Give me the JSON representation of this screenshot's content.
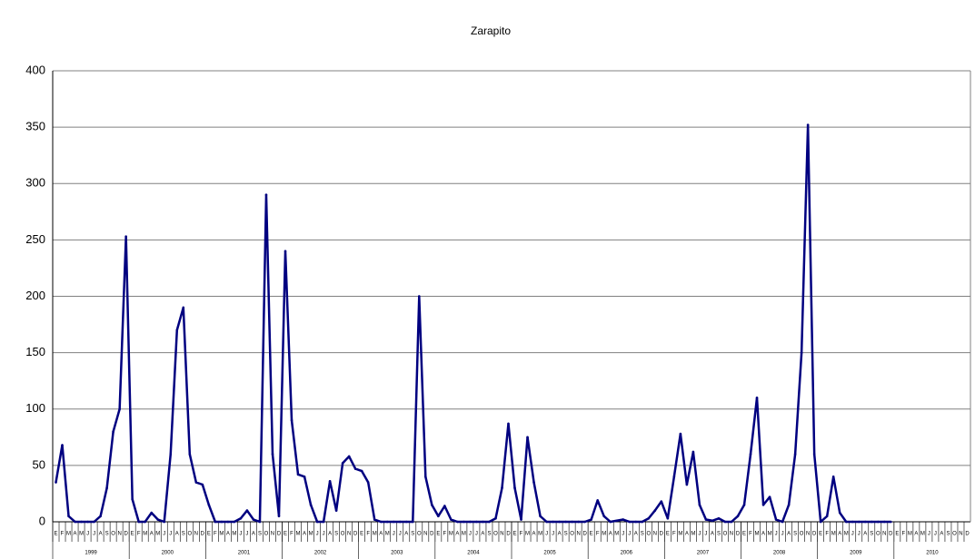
{
  "chart_data": {
    "type": "line",
    "title": "Zarapito",
    "categories": [
      "E",
      "F",
      "M",
      "A",
      "M",
      "J",
      "J",
      "A",
      "S",
      "O",
      "N",
      "D",
      "E",
      "F",
      "M",
      "A",
      "M",
      "J",
      "J",
      "A",
      "S",
      "O",
      "N",
      "D",
      "E",
      "F",
      "M",
      "A",
      "M",
      "J",
      "J",
      "A",
      "S",
      "O",
      "N",
      "D",
      "E",
      "F",
      "M",
      "A",
      "M",
      "J",
      "J",
      "A",
      "S",
      "O",
      "N",
      "D",
      "E",
      "F",
      "M",
      "A",
      "M",
      "J",
      "J",
      "A",
      "S",
      "O",
      "N",
      "D",
      "E",
      "F",
      "M",
      "A",
      "M",
      "J",
      "J",
      "A",
      "S",
      "O",
      "N",
      "D",
      "E",
      "F",
      "M",
      "A",
      "M",
      "J",
      "J",
      "A",
      "S",
      "O",
      "N",
      "D",
      "E",
      "F",
      "M",
      "A",
      "M",
      "J",
      "J",
      "A",
      "S",
      "O",
      "N",
      "D",
      "E",
      "F",
      "M",
      "A",
      "M",
      "J",
      "J",
      "A",
      "S",
      "O",
      "N",
      "D",
      "E",
      "F",
      "M",
      "A",
      "M",
      "J",
      "J",
      "A",
      "S",
      "O",
      "N",
      "D",
      "E",
      "F",
      "M",
      "A",
      "M",
      "J",
      "J",
      "A",
      "S",
      "O",
      "N",
      "D",
      "E",
      "F",
      "M",
      "A",
      "M",
      "J",
      "J",
      "A",
      "S",
      "O",
      "N",
      "D"
    ],
    "years": [
      "1999",
      "2000",
      "2001",
      "2002",
      "2003",
      "2004",
      "2005",
      "2006",
      "2007",
      "2008",
      "2009",
      "2010"
    ],
    "series": [
      {
        "color": "#000080",
        "values": [
          35,
          68,
          5,
          0,
          0,
          0,
          0,
          5,
          30,
          80,
          100,
          253,
          20,
          0,
          0,
          8,
          2,
          0,
          60,
          170,
          190,
          60,
          35,
          33,
          15,
          0,
          0,
          0,
          0,
          3,
          10,
          2,
          0,
          290,
          60,
          5,
          240,
          90,
          42,
          40,
          15,
          0,
          0,
          36,
          10,
          52,
          58,
          47,
          45,
          35,
          2,
          0,
          0,
          0,
          0,
          0,
          0,
          200,
          40,
          15,
          5,
          14,
          2,
          0,
          0,
          0,
          0,
          0,
          0,
          3,
          30,
          87,
          30,
          2,
          75,
          35,
          5,
          0,
          0,
          0,
          0,
          0,
          0,
          0,
          2,
          19,
          5,
          0,
          1,
          2,
          0,
          0,
          0,
          3,
          10,
          18,
          3,
          40,
          78,
          33,
          62,
          15,
          2,
          1,
          3,
          0,
          0,
          5,
          15,
          60,
          110,
          15,
          22,
          2,
          0,
          15,
          60,
          150,
          352,
          60,
          0,
          5,
          40,
          8,
          0,
          0,
          0,
          0,
          0,
          0,
          0,
          0,
          null,
          null,
          null,
          null,
          null,
          null,
          null,
          null,
          null,
          null,
          null,
          null
        ]
      }
    ],
    "ylim": [
      0,
      400
    ],
    "yticks": [
      0,
      50,
      100,
      150,
      200,
      250,
      300,
      350,
      400
    ],
    "grid": true
  }
}
